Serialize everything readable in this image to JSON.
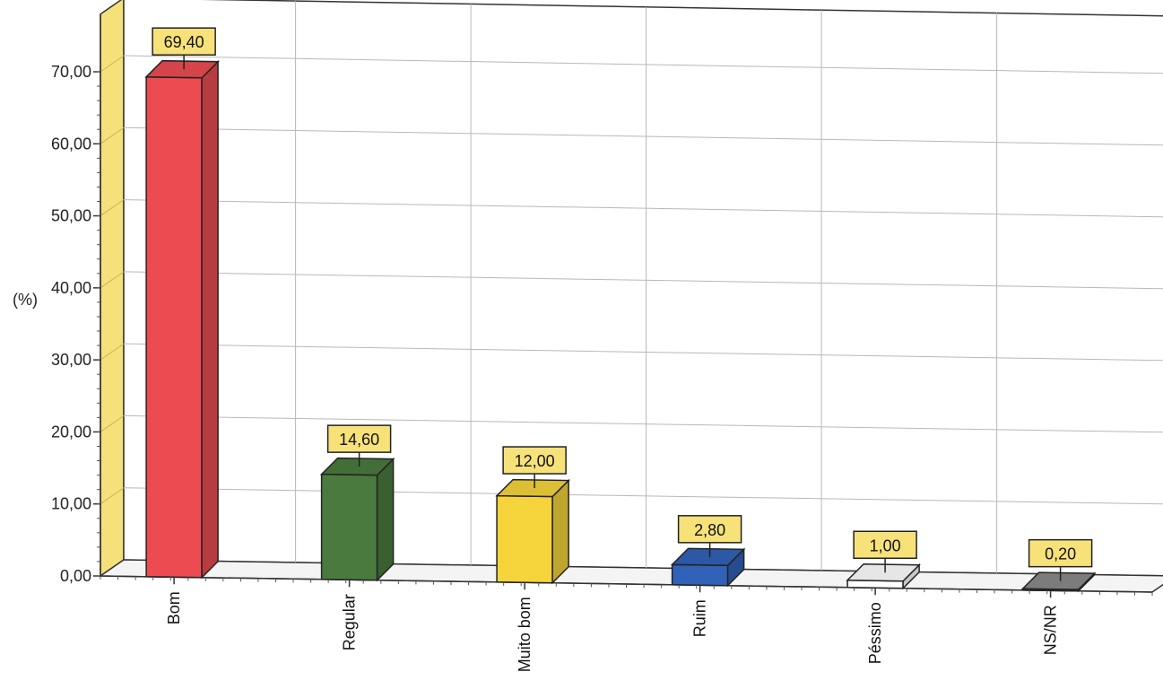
{
  "chart_data": {
    "type": "bar",
    "style": "3d",
    "ylabel": "(%)",
    "xlabel": "",
    "ylim": [
      0,
      70
    ],
    "yticks": [
      {
        "value": 0,
        "label": "0,00"
      },
      {
        "value": 10,
        "label": "10,00"
      },
      {
        "value": 20,
        "label": "20,00"
      },
      {
        "value": 30,
        "label": "30,00"
      },
      {
        "value": 40,
        "label": "40,00"
      },
      {
        "value": 50,
        "label": "50,00"
      },
      {
        "value": 60,
        "label": "60,00"
      },
      {
        "value": 70,
        "label": "70,00"
      }
    ],
    "categories": [
      "Bom",
      "Regular",
      "Muito bom",
      "Ruim",
      "Péssimo",
      "NS/NR"
    ],
    "values": [
      69.4,
      14.6,
      12.0,
      2.8,
      1.0,
      0.2
    ],
    "value_labels": [
      "69,40",
      "14,60",
      "12,00",
      "2,80",
      "1,00",
      "0,20"
    ],
    "bar_colors": [
      "#ec4b52",
      "#4a7a3e",
      "#f4d43a",
      "#3162b8",
      "#ffffff",
      "#8a8a8a"
    ],
    "label_box_color": "#f7e27a",
    "wall_color": "#f5e07a",
    "grid": true,
    "legend": "none"
  }
}
